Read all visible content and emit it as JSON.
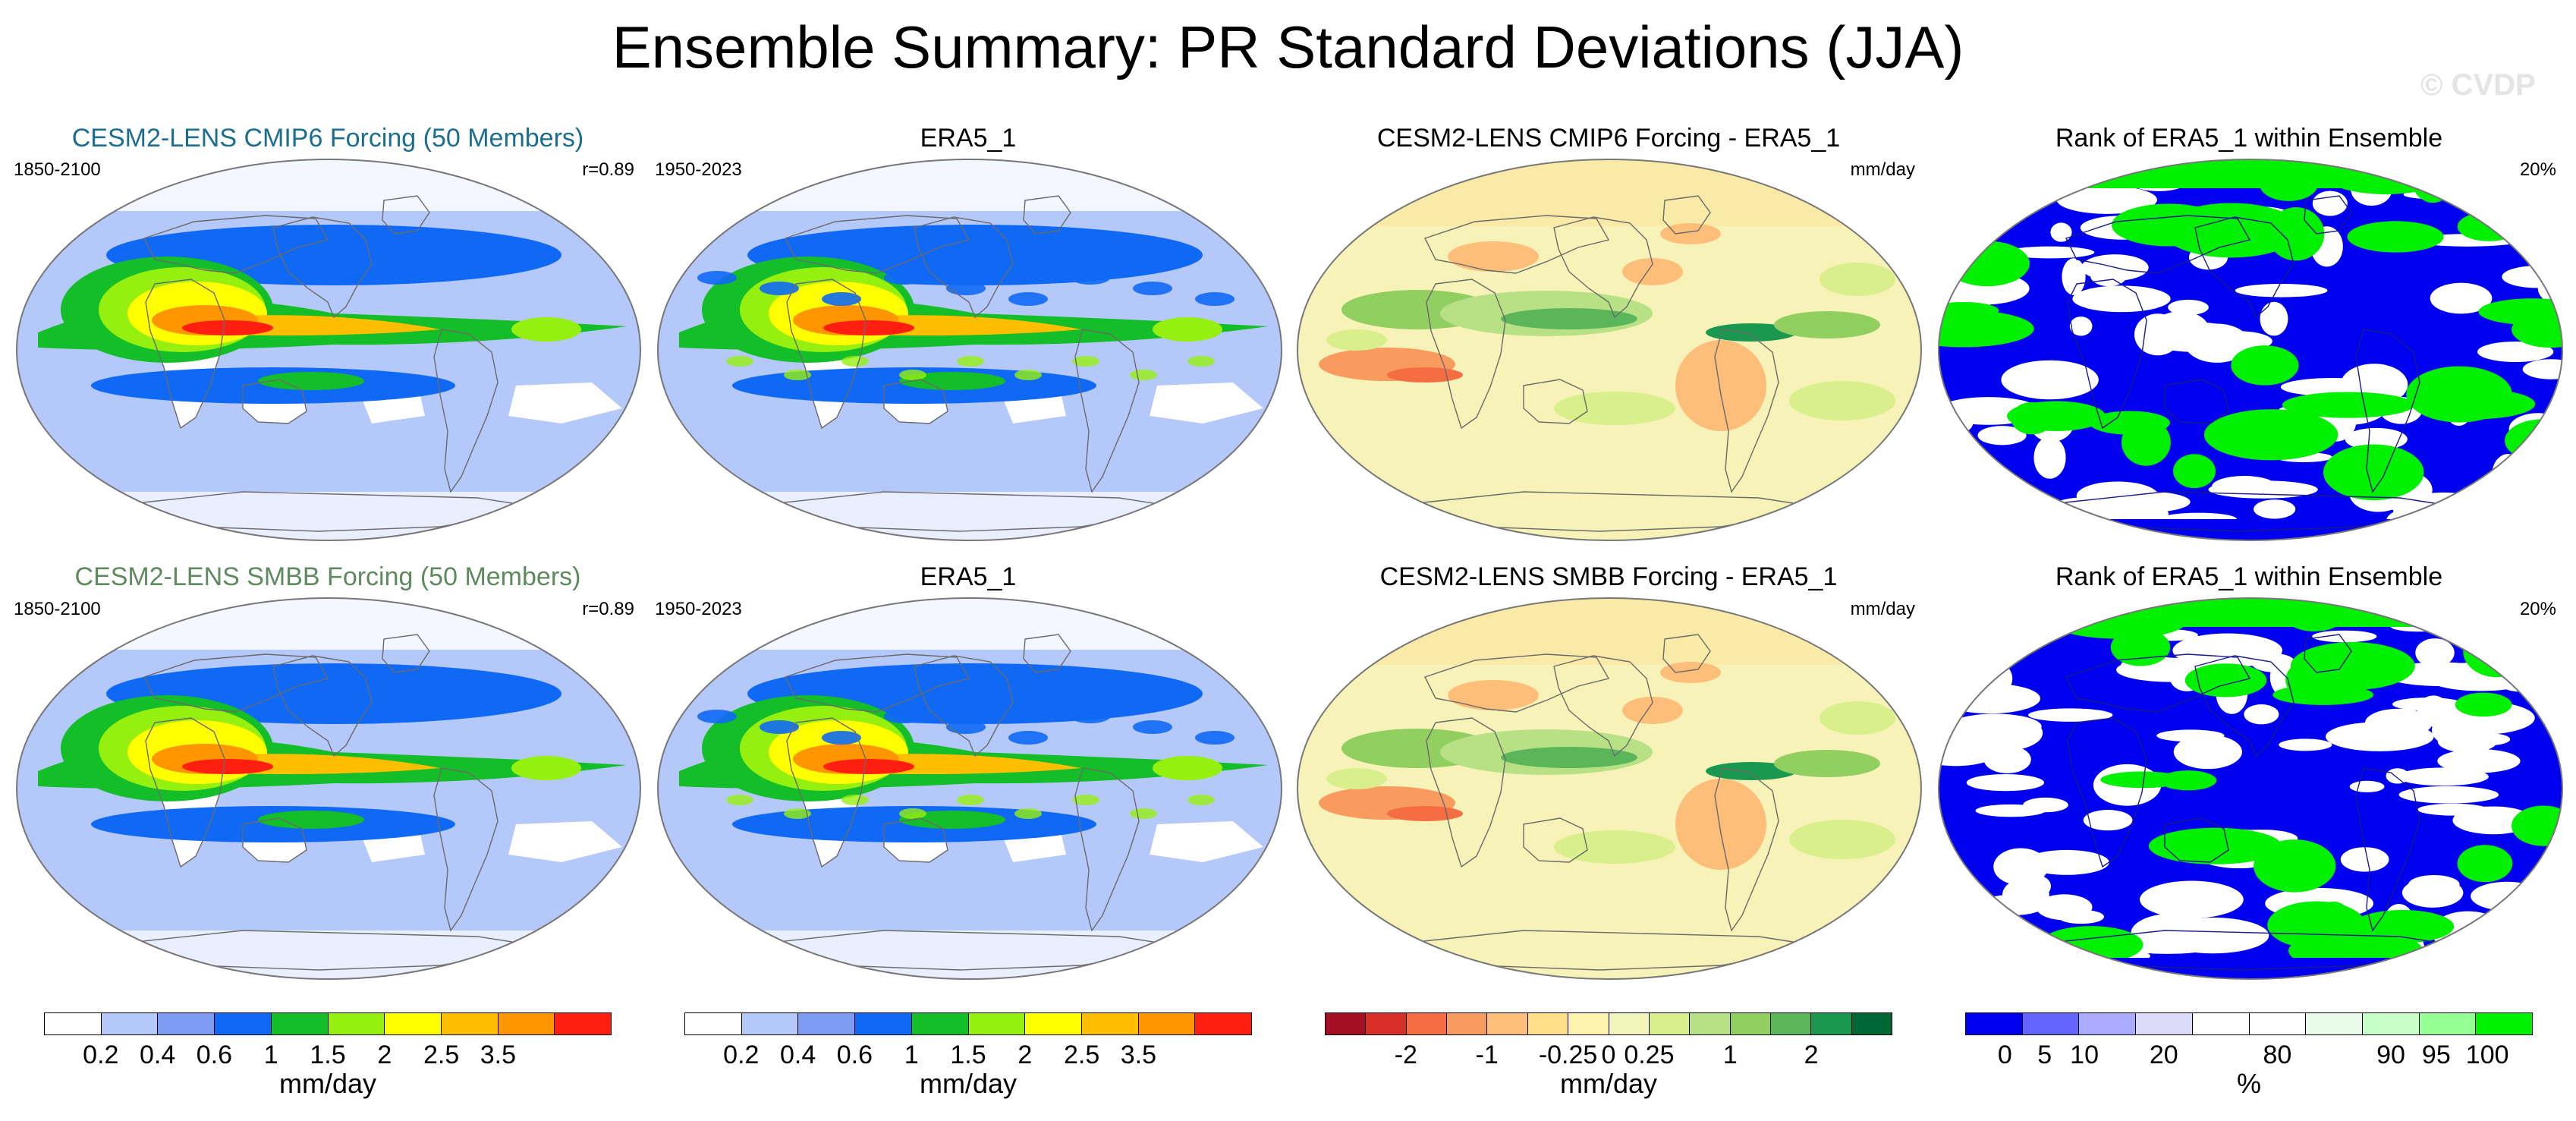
{
  "figure": {
    "title": "Ensemble Summary: PR Standard Deviations (JJA)",
    "watermark": "© CVDP"
  },
  "rows": [
    {
      "panels": [
        {
          "title": "CESM2-LENS CMIP6 Forcing (50 Members)",
          "title_color": "#1b6e8e",
          "left_label": "1850-2100",
          "right_label": "r=0.89",
          "kind": "sd"
        },
        {
          "title": "ERA5_1",
          "title_color": "#000000",
          "left_label": "1950-2023",
          "right_label": "",
          "kind": "sd_obs"
        },
        {
          "title": "CESM2-LENS CMIP6 Forcing - ERA5_1",
          "title_color": "#000000",
          "left_label": "",
          "right_label": "mm/day",
          "kind": "diff"
        },
        {
          "title": "Rank of ERA5_1 within Ensemble",
          "title_color": "#000000",
          "left_label": "",
          "right_label": "20%",
          "kind": "rank"
        }
      ]
    },
    {
      "panels": [
        {
          "title": "CESM2-LENS SMBB Forcing (50 Members)",
          "title_color": "#5f8a5f",
          "left_label": "1850-2100",
          "right_label": "r=0.89",
          "kind": "sd"
        },
        {
          "title": "ERA5_1",
          "title_color": "#000000",
          "left_label": "1950-2023",
          "right_label": "",
          "kind": "sd_obs"
        },
        {
          "title": "CESM2-LENS SMBB Forcing - ERA5_1",
          "title_color": "#000000",
          "left_label": "",
          "right_label": "mm/day",
          "kind": "diff"
        },
        {
          "title": "Rank of ERA5_1 within Ensemble",
          "title_color": "#000000",
          "left_label": "",
          "right_label": "20%",
          "kind": "rank"
        }
      ]
    }
  ],
  "colorbars": [
    {
      "unit": "mm/day",
      "colors": [
        "#ffffff",
        "#b4c8fa",
        "#7d9bf0",
        "#0f69f5",
        "#14be28",
        "#96f00f",
        "#ffff00",
        "#ffbe00",
        "#ff9600",
        "#ff1e0f"
      ],
      "labels": [
        "0.2",
        "0.4",
        "0.6",
        "1",
        "1.5",
        "2",
        "2.5",
        "3.5"
      ]
    },
    {
      "unit": "mm/day",
      "colors": [
        "#ffffff",
        "#b4c8fa",
        "#7d9bf0",
        "#0f69f5",
        "#14be28",
        "#96f00f",
        "#ffff00",
        "#ffbe00",
        "#ff9600",
        "#ff1e0f"
      ],
      "labels": [
        "0.2",
        "0.4",
        "0.6",
        "1",
        "1.5",
        "2",
        "2.5",
        "3.5"
      ]
    },
    {
      "unit": "mm/day",
      "colors": [
        "#a50f26",
        "#d73027",
        "#f46d43",
        "#f99a5f",
        "#fdbe7a",
        "#fee08b",
        "#fff3b0",
        "#f3f6b8",
        "#d9ef8b",
        "#b8e186",
        "#91cf60",
        "#5bb65a",
        "#1a9850",
        "#006837"
      ],
      "labels": [
        "-2",
        "-1",
        "-0.25",
        "0",
        "0.25",
        "1",
        "2"
      ]
    },
    {
      "unit": "%",
      "colors": [
        "#0000f0",
        "#6464ff",
        "#aaaaff",
        "#dcdcfa",
        "#ffffff",
        "#ffffff",
        "#e8fae8",
        "#c8ffc8",
        "#96ff96",
        "#00f000"
      ],
      "labels": [
        "0",
        "5",
        "10",
        "20",
        "80",
        "90",
        "95",
        "100"
      ]
    }
  ]
}
